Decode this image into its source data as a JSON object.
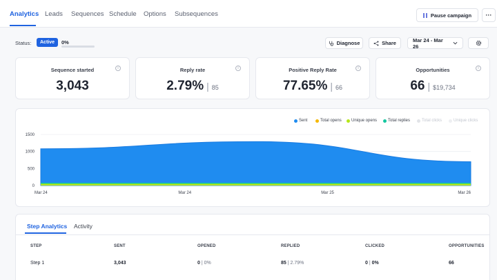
{
  "nav": {
    "tabs": [
      "Analytics",
      "Leads",
      "Sequences",
      "Schedule",
      "Options",
      "Subsequences"
    ],
    "pause_label": "Pause campaign",
    "more_label": "···"
  },
  "status": {
    "label": "Status:",
    "badge": "Active",
    "progress_text": "0%",
    "progress_fraction": 0
  },
  "toolbar": {
    "diagnose": "Diagnose",
    "share": "Share",
    "date_range": "Mar 24 - Mar 26"
  },
  "stats": [
    {
      "title": "Sequence started",
      "value": "3,043",
      "sub": ""
    },
    {
      "title": "Reply rate",
      "value": "2.79%",
      "sub": "85"
    },
    {
      "title": "Positive Reply Rate",
      "value": "77.65%",
      "sub": "66"
    },
    {
      "title": "Opportunities",
      "value": "66",
      "sub": "$19,734"
    }
  ],
  "chart_data": {
    "type": "area",
    "x": [
      "Mar 24",
      "Mar 25",
      "Mar 26"
    ],
    "x_tick_labels": [
      "Mar 24",
      "Mar 24",
      "Mar 25",
      "Mar 26"
    ],
    "y_ticks": [
      "1500",
      "1000",
      "500",
      "0"
    ],
    "ylim": [
      0,
      1500
    ],
    "legend": [
      {
        "name": "Sent",
        "color": "#1f8cf0"
      },
      {
        "name": "Total opens",
        "color": "#f5b800"
      },
      {
        "name": "Unique opens",
        "color": "#b6e61a"
      },
      {
        "name": "Total replies",
        "color": "#15c7a0"
      },
      {
        "name": "Total clicks",
        "color": "#e2e4e8"
      },
      {
        "name": "Unique clicks",
        "color": "#eeeff2"
      }
    ],
    "series": [
      {
        "name": "Sent",
        "points": [
          [
            0,
            1080
          ],
          [
            0.5,
            1290
          ],
          [
            1.0,
            700
          ]
        ]
      },
      {
        "name": "Total replies",
        "points": [
          [
            0,
            80
          ],
          [
            0.5,
            80
          ],
          [
            1.0,
            80
          ]
        ]
      },
      {
        "name": "Unique opens",
        "points": [
          [
            0,
            50
          ],
          [
            0.5,
            50
          ],
          [
            1.0,
            50
          ]
        ]
      }
    ],
    "legend_position": "top-right",
    "grid": true
  },
  "step_analytics": {
    "tabs": [
      "Step Analytics",
      "Activity"
    ],
    "headers": [
      "STEP",
      "SENT",
      "OPENED",
      "REPLIED",
      "CLICKED",
      "OPPORTUNITIES"
    ],
    "row": {
      "step": "Step 1",
      "sent": "3,043",
      "opened": "0",
      "opened_pct": "0%",
      "replied": "85",
      "replied_pct": "2.79%",
      "clicked": "0",
      "clicked_pct": "0%",
      "opportunities": "66"
    }
  }
}
